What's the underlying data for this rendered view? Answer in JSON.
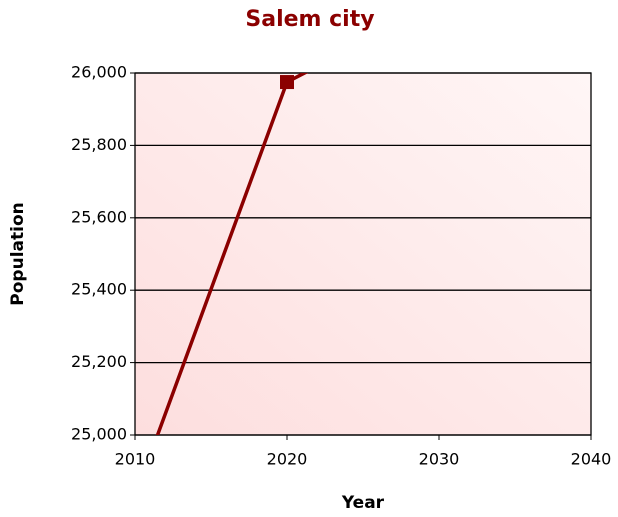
{
  "chart_data": {
    "type": "line",
    "title": "Salem city",
    "xlabel": "Year",
    "ylabel": "Population",
    "series": [
      {
        "name": "Population",
        "color": "#8b0000",
        "x": [
          2010,
          2020,
          2023
        ],
        "values": [
          24830,
          25975,
          26040
        ]
      }
    ],
    "xlim": [
      2010,
      2040
    ],
    "xticks": [
      2010,
      2020,
      2030,
      2040
    ],
    "ylim": [
      25000,
      26000
    ],
    "yticks": [
      {
        "value": 25000,
        "label": "25,000"
      },
      {
        "value": 25200,
        "label": "25,200"
      },
      {
        "value": 25400,
        "label": "25,400"
      },
      {
        "value": 25600,
        "label": "25,600"
      },
      {
        "value": 25800,
        "label": "25,800"
      },
      {
        "value": 26000,
        "label": "26,000"
      }
    ],
    "grid": true
  }
}
